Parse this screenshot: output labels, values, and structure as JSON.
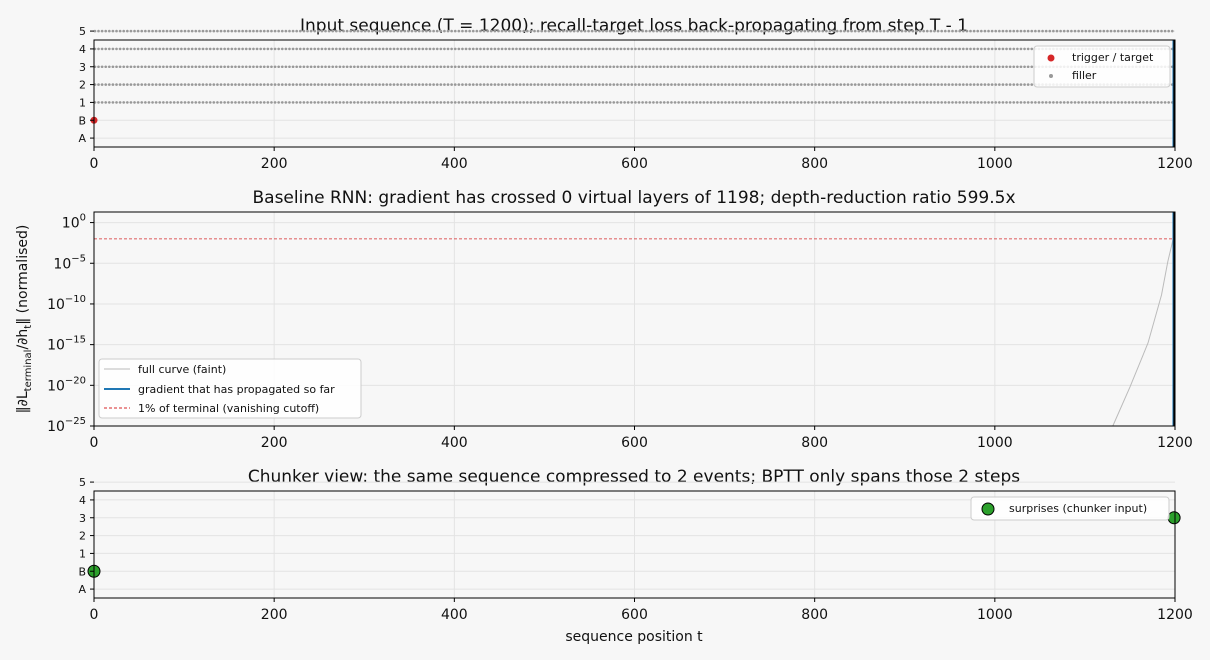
{
  "chart_data": [
    {
      "type": "scatter",
      "title": "Input sequence (T = 1200);  recall-target loss back-propagating from step T - 1",
      "xlabel": "",
      "ylabel": "",
      "xlim": [
        0,
        1200
      ],
      "ylim": [
        -0.5,
        5.5
      ],
      "x_ticks": [
        0,
        200,
        400,
        600,
        800,
        1000,
        1200
      ],
      "y_tick_labels": [
        "A",
        "B",
        "1",
        "2",
        "3",
        "4",
        "5"
      ],
      "grid": true,
      "legend_position": "top-right",
      "series": [
        {
          "name": "trigger / target",
          "color": "#d62728",
          "points": [
            {
              "x": 0,
              "y": "B"
            }
          ]
        },
        {
          "name": "filler",
          "color": "#999999",
          "description_of_values": "one filler token per position t = 1 … 1198, each drawn at its token row (1–5)",
          "rows": [
            "1",
            "2",
            "3",
            "4",
            "5"
          ],
          "x_range": [
            1,
            1198
          ]
        }
      ],
      "vertical_markers": [
        {
          "x": 1198,
          "color": "#1f77b4"
        },
        {
          "x": 1199,
          "color": "#000000"
        }
      ]
    },
    {
      "type": "line",
      "title": "Baseline RNN: gradient has crossed 0 virtual layers of 1198;  depth-reduction ratio 599.5x",
      "xlabel": "",
      "ylabel": "‖∂L_terminal/∂h_t‖  (normalised)",
      "yscale": "log",
      "xlim": [
        0,
        1200
      ],
      "ylim_log10": [
        -25,
        1.3
      ],
      "x_ticks": [
        0,
        200,
        400,
        600,
        800,
        1000,
        1200
      ],
      "y_ticks_log10": [
        0,
        -5,
        -10,
        -15,
        -20,
        -25
      ],
      "grid": true,
      "legend_position": "bottom-left",
      "series": [
        {
          "name": "full curve (faint)",
          "color": "#bbbbbb",
          "x": [
            1131,
            1150,
            1170,
            1185,
            1192,
            1198
          ],
          "y_log10": [
            -25,
            -20.2,
            -14.8,
            -8.9,
            -4.8,
            -2.0
          ]
        },
        {
          "name": "gradient that has propagated so far",
          "color": "#1f77b4",
          "x": [
            1198
          ],
          "y_log10": [
            0
          ]
        },
        {
          "name": "1% of terminal (vanishing cutoff)",
          "color": "#d62728",
          "style": "dashed",
          "y_log10_constant": -2
        }
      ],
      "vertical_markers": [
        {
          "x": 1198,
          "color": "#1f77b4"
        },
        {
          "x": 1199,
          "color": "#000000"
        }
      ]
    },
    {
      "type": "scatter",
      "title": "Chunker view: the same sequence compressed to 2 events;  BPTT only spans those 2 steps",
      "xlabel": "sequence position t",
      "ylabel": "",
      "xlim": [
        0,
        1200
      ],
      "ylim": [
        -0.5,
        5.5
      ],
      "x_ticks": [
        0,
        200,
        400,
        600,
        800,
        1000,
        1200
      ],
      "y_tick_labels": [
        "A",
        "B",
        "1",
        "2",
        "3",
        "4",
        "5"
      ],
      "grid": true,
      "legend_position": "top-right",
      "series": [
        {
          "name": "surprises (chunker input)",
          "color": "#2ca02c",
          "points": [
            {
              "x": 0,
              "y": "B"
            },
            {
              "x": 1199,
              "y": "3"
            }
          ]
        }
      ]
    }
  ],
  "ui": {
    "panel1_title": "Input sequence (T = 1200);  recall-target loss back-propagating from step T - 1",
    "panel2_title": "Baseline RNN: gradient has crossed 0 virtual layers of 1198;  depth-reduction ratio 599.5x",
    "panel3_title": "Chunker view: the same sequence compressed to 2 events;  BPTT only spans those 2 steps",
    "panel3_xlabel": "sequence position t",
    "panel2_ylabel_main": "‖∂L",
    "panel2_ylabel_sub": "terminal",
    "panel2_ylabel_rest": "/∂h",
    "panel2_ylabel_sub2": "t",
    "panel2_ylabel_end": "‖  (normalised)",
    "legend1": [
      "trigger / target",
      "filler"
    ],
    "legend2": [
      "full curve (faint)",
      "gradient that has propagated so far",
      "1% of terminal (vanishing cutoff)"
    ],
    "legend3": [
      "surprises (chunker input)"
    ],
    "xtick_labels": [
      "0",
      "200",
      "400",
      "600",
      "800",
      "1000",
      "1200"
    ],
    "ytick_labels_cat": [
      "A",
      "B",
      "1",
      "2",
      "3",
      "4",
      "5"
    ],
    "ytick_labels_log": [
      "10",
      "10",
      "10",
      "10",
      "10",
      "10"
    ],
    "ytick_exps_log": [
      "0",
      "−5",
      "−10",
      "−15",
      "−20",
      "−25"
    ]
  }
}
